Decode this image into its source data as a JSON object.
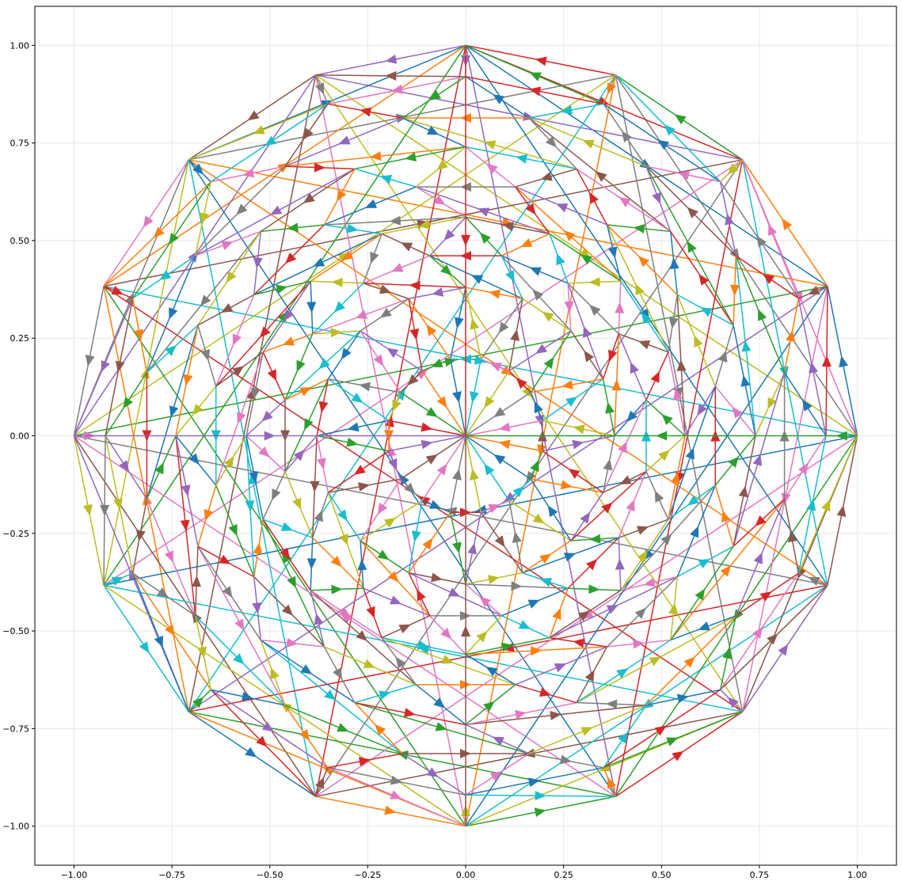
{
  "chart_data": {
    "type": "line",
    "title": "",
    "xlabel": "",
    "ylabel": "",
    "xlim": [
      -1.1,
      1.1
    ],
    "ylim": [
      -1.1,
      1.1
    ],
    "x_ticks": [
      -1.0,
      -0.75,
      -0.5,
      -0.25,
      0.0,
      0.25,
      0.5,
      0.75,
      1.0
    ],
    "y_ticks": [
      -1.0,
      -0.75,
      -0.5,
      -0.25,
      0.0,
      0.25,
      0.5,
      0.75,
      1.0
    ],
    "x_tick_labels": [
      "−1.00",
      "−0.75",
      "−0.50",
      "−0.25",
      "0.00",
      "0.25",
      "0.50",
      "0.75",
      "1.00"
    ],
    "y_tick_labels": [
      "−1.00",
      "−0.75",
      "−0.50",
      "−0.25",
      "0.00",
      "0.25",
      "0.50",
      "0.75",
      "1.00"
    ],
    "grid": true,
    "legend": "none",
    "description_points": "Directed edges (arrows) connecting points of a 16-fold rotationally symmetric nested-polygon figure; outer vertices on the unit circle at multiples of 22.5 degrees",
    "outer_vertices": [
      [
        1.0,
        0.0
      ],
      [
        0.924,
        0.383
      ],
      [
        0.707,
        0.707
      ],
      [
        0.383,
        0.924
      ],
      [
        0.0,
        1.0
      ],
      [
        -0.383,
        0.924
      ],
      [
        -0.707,
        0.707
      ],
      [
        -0.924,
        0.383
      ],
      [
        -1.0,
        0.0
      ],
      [
        -0.924,
        -0.383
      ],
      [
        -0.707,
        -0.707
      ],
      [
        -0.383,
        -0.924
      ],
      [
        0.0,
        -1.0
      ],
      [
        0.383,
        -0.924
      ],
      [
        0.707,
        -0.707
      ],
      [
        0.924,
        -0.383
      ]
    ],
    "palette": [
      "#1f77b4",
      "#ff7f0e",
      "#2ca02c",
      "#d62728",
      "#9467bd",
      "#8c564b",
      "#e377c2",
      "#7f7f7f",
      "#bcbd22",
      "#17becf"
    ]
  }
}
